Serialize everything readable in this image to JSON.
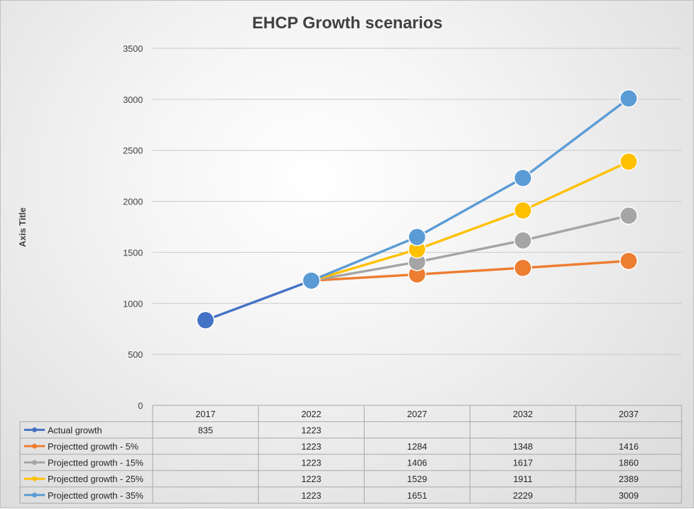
{
  "chart_data": {
    "type": "line",
    "title": "EHCP Growth scenarios",
    "ylabel": "Axis Title",
    "xlabel": "",
    "ylim": [
      0,
      3500
    ],
    "yticks": [
      0,
      500,
      1000,
      1500,
      2000,
      2500,
      3000,
      3500
    ],
    "categories": [
      "2017",
      "2022",
      "2027",
      "2032",
      "2037"
    ],
    "grid": true,
    "legend_placement": "data table below chart",
    "series": [
      {
        "name": "Actual growth",
        "color": "#4472c4",
        "values": [
          835,
          1223,
          null,
          null,
          null
        ]
      },
      {
        "name": "Projectted growth - 5%",
        "color": "#ed7d31",
        "values": [
          null,
          1223,
          1284,
          1348,
          1416
        ]
      },
      {
        "name": "Projectted growth - 15%",
        "color": "#a5a5a5",
        "values": [
          null,
          1223,
          1406,
          1617,
          1860
        ]
      },
      {
        "name": "Projectted growth - 25%",
        "color": "#ffc000",
        "values": [
          null,
          1223,
          1529,
          1911,
          2389
        ]
      },
      {
        "name": "Projectted growth - 35%",
        "color": "#5b9bd5",
        "values": [
          null,
          1223,
          1651,
          2229,
          3009
        ]
      }
    ]
  }
}
